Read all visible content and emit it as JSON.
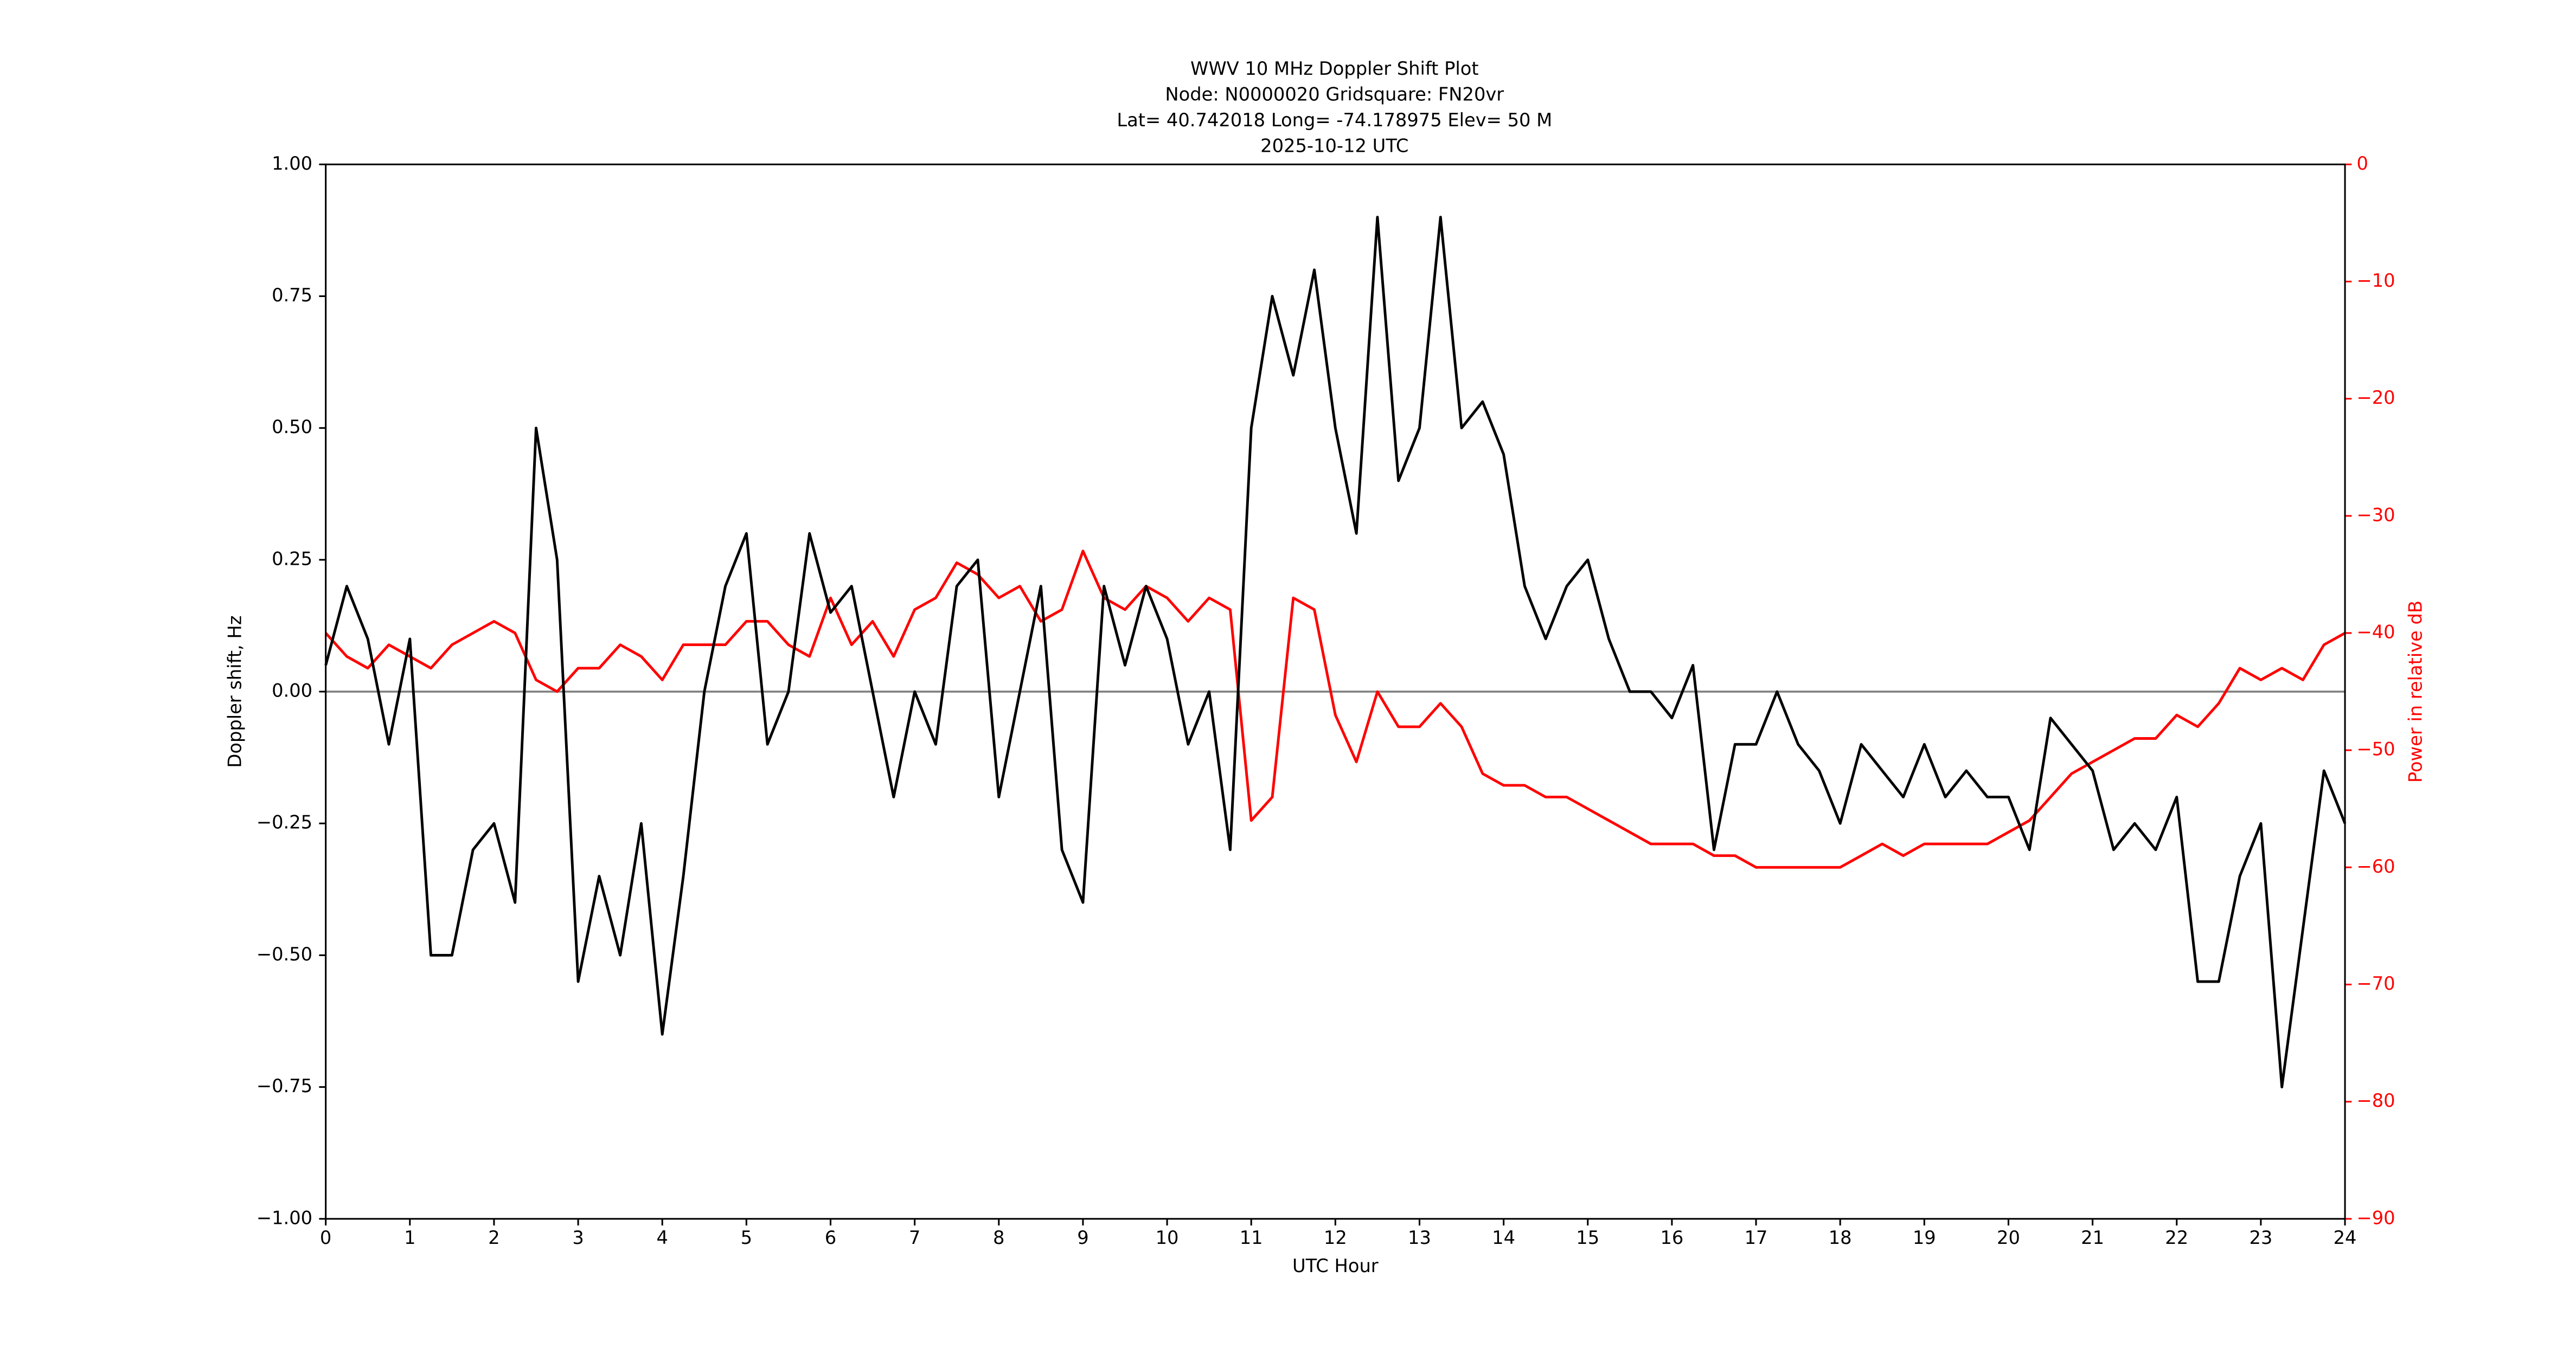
{
  "chart_data": {
    "type": "line",
    "title": [
      "WWV 10 MHz Doppler Shift Plot",
      "Node:  N0000020     Gridsquare:  FN20vr",
      "Lat= 40.742018    Long= -74.178975    Elev= 50 M",
      "2025-10-12  UTC"
    ],
    "xlabel": "UTC Hour",
    "ylabel": "Doppler shift, Hz",
    "y2label": "Power in relative dB",
    "x": [
      0,
      0.25,
      0.5,
      0.75,
      1,
      1.25,
      1.5,
      1.75,
      2,
      2.25,
      2.5,
      2.75,
      3,
      3.25,
      3.5,
      3.75,
      4,
      4.25,
      4.5,
      4.75,
      5,
      5.25,
      5.5,
      5.75,
      6,
      6.25,
      6.5,
      6.75,
      7,
      7.25,
      7.5,
      7.75,
      8,
      8.25,
      8.5,
      8.75,
      9,
      9.25,
      9.5,
      9.75,
      10,
      10.25,
      10.5,
      10.75,
      11,
      11.25,
      11.5,
      11.75,
      12,
      12.25,
      12.5,
      12.75,
      13,
      13.25,
      13.5,
      13.75,
      14,
      14.25,
      14.5,
      14.75,
      15,
      15.25,
      15.5,
      15.75,
      16,
      16.25,
      16.5,
      16.75,
      17,
      17.25,
      17.5,
      17.75,
      18,
      18.25,
      18.5,
      18.75,
      19,
      19.25,
      19.5,
      19.75,
      20,
      20.25,
      20.5,
      20.75,
      21,
      21.25,
      21.5,
      21.75,
      22,
      22.25,
      22.5,
      22.75,
      23,
      23.25,
      23.5,
      23.75,
      24
    ],
    "series": [
      {
        "name": "Doppler shift",
        "color": "#000000",
        "axis": "y",
        "values": [
          0.05,
          0.2,
          0.1,
          -0.1,
          0.1,
          -0.5,
          -0.5,
          -0.3,
          -0.25,
          -0.4,
          0.5,
          0.25,
          -0.55,
          -0.35,
          -0.5,
          -0.25,
          -0.65,
          -0.35,
          0.0,
          0.2,
          0.3,
          -0.1,
          0.0,
          0.3,
          0.15,
          0.2,
          0.0,
          -0.2,
          0.0,
          -0.1,
          0.2,
          0.25,
          -0.2,
          0.0,
          0.2,
          -0.3,
          -0.4,
          0.2,
          0.05,
          0.2,
          0.1,
          -0.1,
          0.0,
          -0.3,
          0.5,
          0.75,
          0.6,
          0.8,
          0.5,
          0.3,
          0.9,
          0.4,
          0.5,
          0.9,
          0.5,
          0.55,
          0.45,
          0.2,
          0.1,
          0.2,
          0.25,
          0.1,
          0.0,
          0.0,
          -0.05,
          0.05,
          -0.3,
          -0.1,
          -0.1,
          0.0,
          -0.1,
          -0.15,
          -0.25,
          -0.1,
          -0.15,
          -0.2,
          -0.1,
          -0.2,
          -0.15,
          -0.2,
          -0.2,
          -0.3,
          -0.05,
          -0.1,
          -0.15,
          -0.3,
          -0.25,
          -0.3,
          -0.2,
          -0.55,
          -0.55,
          -0.35,
          -0.25,
          -0.75,
          -0.45,
          -0.15,
          -0.25
        ]
      },
      {
        "name": "Power",
        "color": "#ff0000",
        "axis": "y2",
        "values": [
          -40,
          -42,
          -43,
          -41,
          -42,
          -43,
          -41,
          -40,
          -39,
          -40,
          -44,
          -45,
          -43,
          -43,
          -41,
          -42,
          -44,
          -41,
          -41,
          -41,
          -39,
          -39,
          -41,
          -42,
          -37,
          -41,
          -39,
          -42,
          -38,
          -37,
          -34,
          -35,
          -37,
          -36,
          -39,
          -38,
          -33,
          -37,
          -38,
          -36,
          -37,
          -39,
          -37,
          -38,
          -56,
          -54,
          -37,
          -38,
          -47,
          -51,
          -45,
          -48,
          -48,
          -46,
          -48,
          -52,
          -53,
          -53,
          -54,
          -54,
          -55,
          -56,
          -57,
          -58,
          -58,
          -58,
          -59,
          -59,
          -60,
          -60,
          -60,
          -60,
          -60,
          -59,
          -58,
          -59,
          -58,
          -58,
          -58,
          -58,
          -57,
          -56,
          -54,
          -52,
          -51,
          -50,
          -49,
          -49,
          -47,
          -48,
          -46,
          -43,
          -44,
          -43,
          -44,
          -41,
          -40
        ]
      }
    ],
    "xlim": [
      0,
      24
    ],
    "xticks": [
      0,
      1,
      2,
      3,
      4,
      5,
      6,
      7,
      8,
      9,
      10,
      11,
      12,
      13,
      14,
      15,
      16,
      17,
      18,
      19,
      20,
      21,
      22,
      23,
      24
    ],
    "ylim": [
      -1,
      1
    ],
    "yticks": [
      {
        "value": -1,
        "label": "−1.00"
      },
      {
        "value": -0.75,
        "label": "−0.75"
      },
      {
        "value": -0.5,
        "label": "−0.50"
      },
      {
        "value": -0.25,
        "label": "−0.25"
      },
      {
        "value": 0,
        "label": "0.00"
      },
      {
        "value": 0.25,
        "label": "0.25"
      },
      {
        "value": 0.5,
        "label": "0.50"
      },
      {
        "value": 0.75,
        "label": "0.75"
      },
      {
        "value": 1,
        "label": "1.00"
      }
    ],
    "y2lim": [
      -90,
      0
    ],
    "y2ticks": [
      {
        "value": -90,
        "label": "−90"
      },
      {
        "value": -80,
        "label": "−80"
      },
      {
        "value": -70,
        "label": "−70"
      },
      {
        "value": -60,
        "label": "−60"
      },
      {
        "value": -50,
        "label": "−50"
      },
      {
        "value": -40,
        "label": "−40"
      },
      {
        "value": -30,
        "label": "−30"
      },
      {
        "value": -20,
        "label": "−20"
      },
      {
        "value": -10,
        "label": "−10"
      },
      0
    ],
    "y2color": "#ff0000",
    "reference_line": 0,
    "reference_color": "#808080"
  }
}
